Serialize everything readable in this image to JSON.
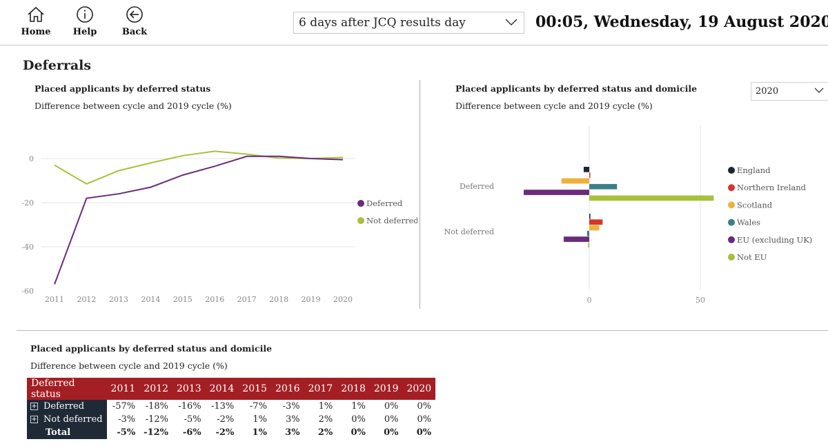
{
  "nav": {
    "home": "Home",
    "help": "Help",
    "back": "Back"
  },
  "filter": {
    "selected": "6 days after JCQ results day"
  },
  "datetime": "00:05, Wednesday, 19 August 2020",
  "section_title": "Deferrals",
  "chart1": {
    "title": "Placed applicants by deferred status",
    "subtitle": "Difference between cycle and 2019 cycle (%)"
  },
  "chart2": {
    "title": "Placed applicants by deferred status and domicile",
    "subtitle": "Difference between cycle and 2019 cycle (%)",
    "year_selected": "2020"
  },
  "table": {
    "title": "Placed applicants by deferred status and domicile",
    "subtitle": "Difference between cycle and 2019 cycle (%)",
    "header_first": "Deferred status",
    "years": [
      "2011",
      "2012",
      "2013",
      "2014",
      "2015",
      "2016",
      "2017",
      "2018",
      "2019",
      "2020"
    ],
    "rows": [
      {
        "label": "Deferred",
        "values": [
          "-57%",
          "-18%",
          "-16%",
          "-13%",
          "-7%",
          "-3%",
          "1%",
          "1%",
          "0%",
          "0%"
        ]
      },
      {
        "label": "Not deferred",
        "values": [
          "-3%",
          "-12%",
          "-5%",
          "-2%",
          "1%",
          "3%",
          "2%",
          "0%",
          "0%",
          "0%"
        ]
      }
    ],
    "total": {
      "label": "Total",
      "values": [
        "-5%",
        "-12%",
        "-6%",
        "-2%",
        "1%",
        "3%",
        "2%",
        "0%",
        "0%",
        "0%"
      ]
    }
  },
  "colors": {
    "deferred": "#6b2a7b",
    "not_deferred": "#a7c13b",
    "england": "#1b2533",
    "northern_ireland": "#d9342b",
    "scotland": "#eeb23a",
    "wales": "#3b7f86",
    "eu": "#6b2a7b",
    "not_eu": "#a7c13b",
    "table_header": "#a31f24",
    "row_header": "#1f2a36"
  },
  "chart_data": [
    {
      "type": "line",
      "x": [
        2011,
        2012,
        2013,
        2014,
        2015,
        2016,
        2017,
        2018,
        2019,
        2020
      ],
      "xticks": [
        "2011",
        "2012",
        "2013",
        "2014",
        "2015",
        "2016",
        "2017",
        "2018",
        "2019",
        "2020"
      ],
      "yticks": [
        "0",
        "-20",
        "-40",
        "-60"
      ],
      "ylim": [
        -60,
        5
      ],
      "series": [
        {
          "name": "Deferred",
          "values": [
            -57,
            -18,
            -16,
            -13,
            -7.5,
            -3.5,
            1,
            1,
            0,
            -0.5
          ]
        },
        {
          "name": "Not deferred",
          "values": [
            -3,
            -11.5,
            -5.5,
            -2,
            1.3,
            3.3,
            2,
            0.2,
            0,
            0.5
          ]
        }
      ],
      "legend": "right",
      "grid": true
    },
    {
      "type": "bar",
      "orientation": "horizontal",
      "categories": [
        "Deferred",
        "Not deferred"
      ],
      "xticks": [
        "0",
        "50"
      ],
      "xlim": [
        -30,
        56
      ],
      "series": [
        {
          "name": "England",
          "values": [
            -2.5,
            0.5
          ]
        },
        {
          "name": "Northern Ireland",
          "values": [
            0,
            6
          ]
        },
        {
          "name": "Scotland",
          "values": [
            -12.5,
            4.5
          ]
        },
        {
          "name": "Wales",
          "values": [
            12.5,
            -1
          ]
        },
        {
          "name": "EU (excluding UK)",
          "values": [
            -29.5,
            -11.5
          ]
        },
        {
          "name": "Not EU",
          "values": [
            56,
            -0.5
          ]
        }
      ],
      "legend": "right",
      "grid": true
    }
  ]
}
